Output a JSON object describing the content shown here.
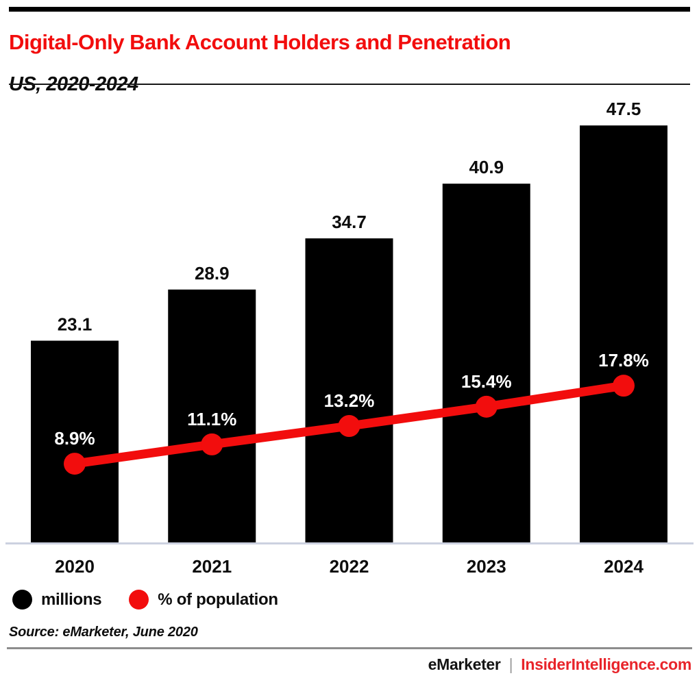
{
  "header": {
    "title": "Digital-Only Bank Account Holders and Penetration",
    "subtitle": "US, 2020-2024"
  },
  "chart_data": {
    "type": "bar",
    "title": "Digital-Only Bank Account Holders and Penetration",
    "subtitle": "US, 2020-2024",
    "categories": [
      "2020",
      "2021",
      "2022",
      "2023",
      "2024"
    ],
    "series": [
      {
        "name": "millions",
        "type": "bar",
        "color": "#000000",
        "values": [
          23.1,
          28.9,
          34.7,
          40.9,
          47.5
        ],
        "label_suffix": "",
        "label_color": "#0d0d0d"
      },
      {
        "name": "% of population",
        "type": "line",
        "color": "#f20d0d",
        "values": [
          8.9,
          11.1,
          13.2,
          15.4,
          17.8
        ],
        "label_suffix": "%",
        "label_color": "#ffffff"
      }
    ],
    "legend": [
      {
        "label": "millions",
        "color": "#000000"
      },
      {
        "label": "% of population",
        "color": "#f20d0d"
      }
    ],
    "xlabel": "",
    "ylabel": "",
    "value_axis_visible": false,
    "grid": false,
    "legend_position": "bottom-left",
    "axis_line_color": "#ccd1e0",
    "category_label_color": "#0d0d0d"
  },
  "source": {
    "text": "Source: eMarketer, June 2020"
  },
  "footer": {
    "brand": "eMarketer",
    "separator": "|",
    "site": "InsiderIntelligence.com"
  },
  "colors": {
    "accent_red": "#f20d0d",
    "footer_link_red": "#e8242a",
    "axis_line": "#ccd1e0"
  }
}
